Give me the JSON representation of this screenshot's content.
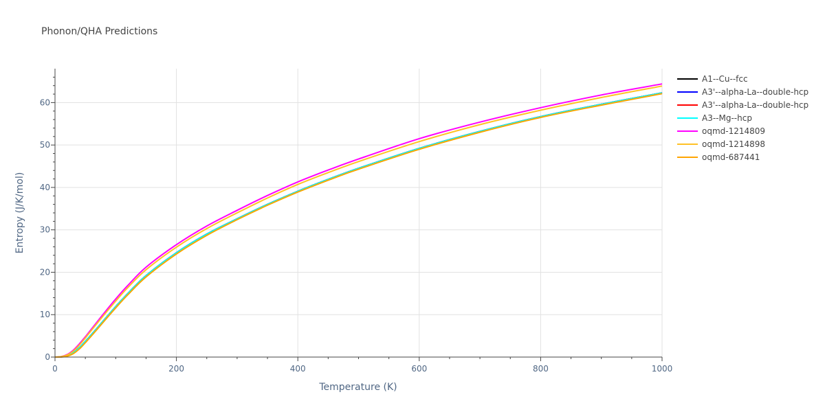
{
  "chart_data": {
    "type": "line",
    "title": "Phonon/QHA Predictions",
    "xlabel": "Temperature (K)",
    "ylabel": "Entropy (J/K/mol)",
    "xlim": [
      0,
      1000
    ],
    "ylim": [
      0,
      68
    ],
    "xticks": [
      0,
      200,
      400,
      600,
      800,
      1000
    ],
    "yticks": [
      0,
      10,
      20,
      30,
      40,
      50,
      60
    ],
    "grid": true,
    "legend_position": "right",
    "x": [
      0,
      10,
      20,
      30,
      40,
      50,
      60,
      80,
      100,
      120,
      150,
      200,
      250,
      300,
      350,
      400,
      450,
      500,
      600,
      700,
      800,
      900,
      1000
    ],
    "series": [
      {
        "name": "A1--Cu--fcc",
        "color": "#000000",
        "values": [
          0,
          0.05,
          0.3,
          1.0,
          2.2,
          3.7,
          5.3,
          8.6,
          11.9,
          15.0,
          19.2,
          24.6,
          29.0,
          32.6,
          36.0,
          39.1,
          41.9,
          44.5,
          49.2,
          53.2,
          56.7,
          59.6,
          62.3
        ]
      },
      {
        "name": "A3'--alpha-La--double-hcp",
        "color": "#0000ff",
        "values": [
          0,
          0.05,
          0.3,
          1.0,
          2.2,
          3.7,
          5.3,
          8.6,
          11.9,
          15.0,
          19.2,
          24.6,
          29.0,
          32.6,
          36.0,
          39.1,
          41.9,
          44.5,
          49.2,
          53.2,
          56.7,
          59.6,
          62.3
        ]
      },
      {
        "name": "A3'--alpha-La--double-hcp",
        "color": "#ff0000",
        "values": [
          0,
          0.05,
          0.3,
          1.0,
          2.2,
          3.7,
          5.3,
          8.6,
          11.9,
          15.0,
          19.2,
          24.6,
          29.0,
          32.6,
          36.0,
          39.1,
          41.9,
          44.5,
          49.2,
          53.2,
          56.7,
          59.6,
          62.3
        ]
      },
      {
        "name": "A3--Mg--hcp",
        "color": "#00ffff",
        "values": [
          0,
          0.05,
          0.3,
          1.0,
          2.2,
          3.7,
          5.3,
          8.6,
          11.9,
          15.0,
          19.2,
          24.6,
          29.0,
          32.6,
          36.0,
          39.1,
          41.9,
          44.5,
          49.2,
          53.2,
          56.7,
          59.6,
          62.3
        ]
      },
      {
        "name": "oqmd-1214809",
        "color": "#ff00ff",
        "values": [
          0,
          0.1,
          0.6,
          1.6,
          3.1,
          4.8,
          6.6,
          10.2,
          13.7,
          16.9,
          21.2,
          26.5,
          30.9,
          34.6,
          38.1,
          41.3,
          44.1,
          46.7,
          51.5,
          55.4,
          58.8,
          61.8,
          64.4
        ]
      },
      {
        "name": "oqmd-1214898",
        "color": "#ffc125",
        "values": [
          0,
          0.1,
          0.5,
          1.4,
          2.8,
          4.5,
          6.3,
          9.8,
          13.2,
          16.4,
          20.6,
          25.9,
          30.3,
          34.0,
          37.5,
          40.7,
          43.5,
          46.1,
          50.8,
          54.8,
          58.2,
          61.2,
          63.9
        ]
      },
      {
        "name": "oqmd-687441",
        "color": "#ffa500",
        "values": [
          0,
          0.02,
          0.2,
          0.8,
          1.9,
          3.4,
          5.0,
          8.3,
          11.6,
          14.7,
          18.9,
          24.3,
          28.7,
          32.4,
          35.8,
          38.9,
          41.7,
          44.3,
          49.0,
          53.0,
          56.5,
          59.4,
          62.1
        ]
      }
    ]
  }
}
